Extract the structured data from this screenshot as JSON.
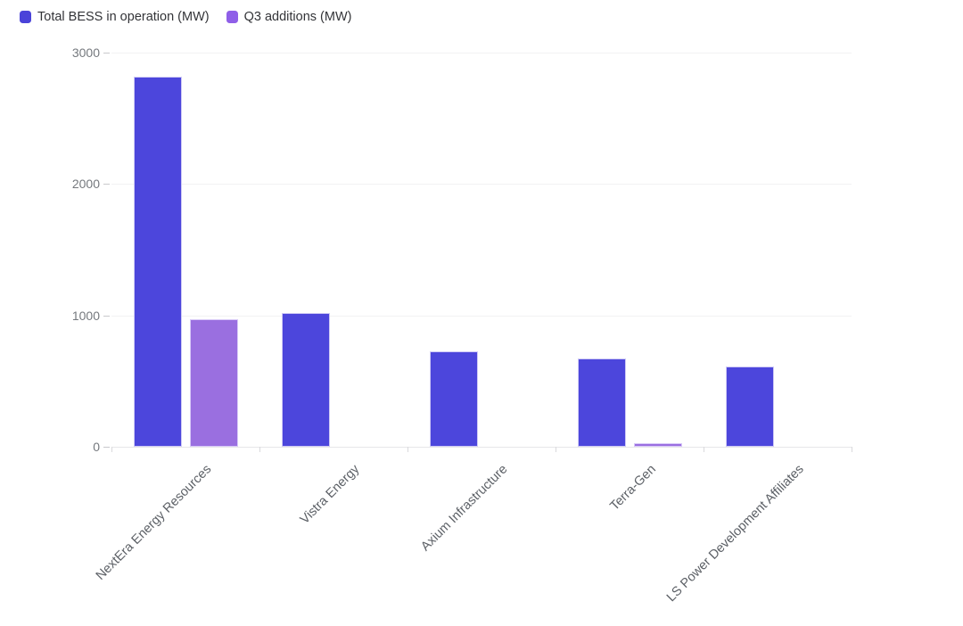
{
  "legend": {
    "items": [
      {
        "label": "Total BESS in operation (MW)",
        "color": "#4a43d9"
      },
      {
        "label": "Q3 additions (MW)",
        "color": "#8f5fe8"
      }
    ]
  },
  "chart_data": {
    "type": "bar",
    "title": "",
    "xlabel": "",
    "ylabel": "",
    "categories": [
      "NextEra Energy Resources",
      "Vistra Energy",
      "Axium Infrastructure",
      "Terra-Gen",
      "LS Power Development Affiliates"
    ],
    "series": [
      {
        "name": "Total BESS in operation (MW)",
        "color": "#4c46dc",
        "border_color": "#cfcaf5",
        "values": [
          2815,
          1020,
          725,
          670,
          610
        ]
      },
      {
        "name": "Q3 additions (MW)",
        "color": "#9a6fe0",
        "border_color": "#d8c9f8",
        "values": [
          970,
          0,
          0,
          25,
          0
        ]
      }
    ],
    "ylim": [
      0,
      3000
    ],
    "yticks": [
      0,
      1000,
      2000,
      3000
    ],
    "grid": true,
    "legend_position": "top-left",
    "grid_color": "#f2f2f3",
    "axis_color": "#e7e7e9"
  }
}
